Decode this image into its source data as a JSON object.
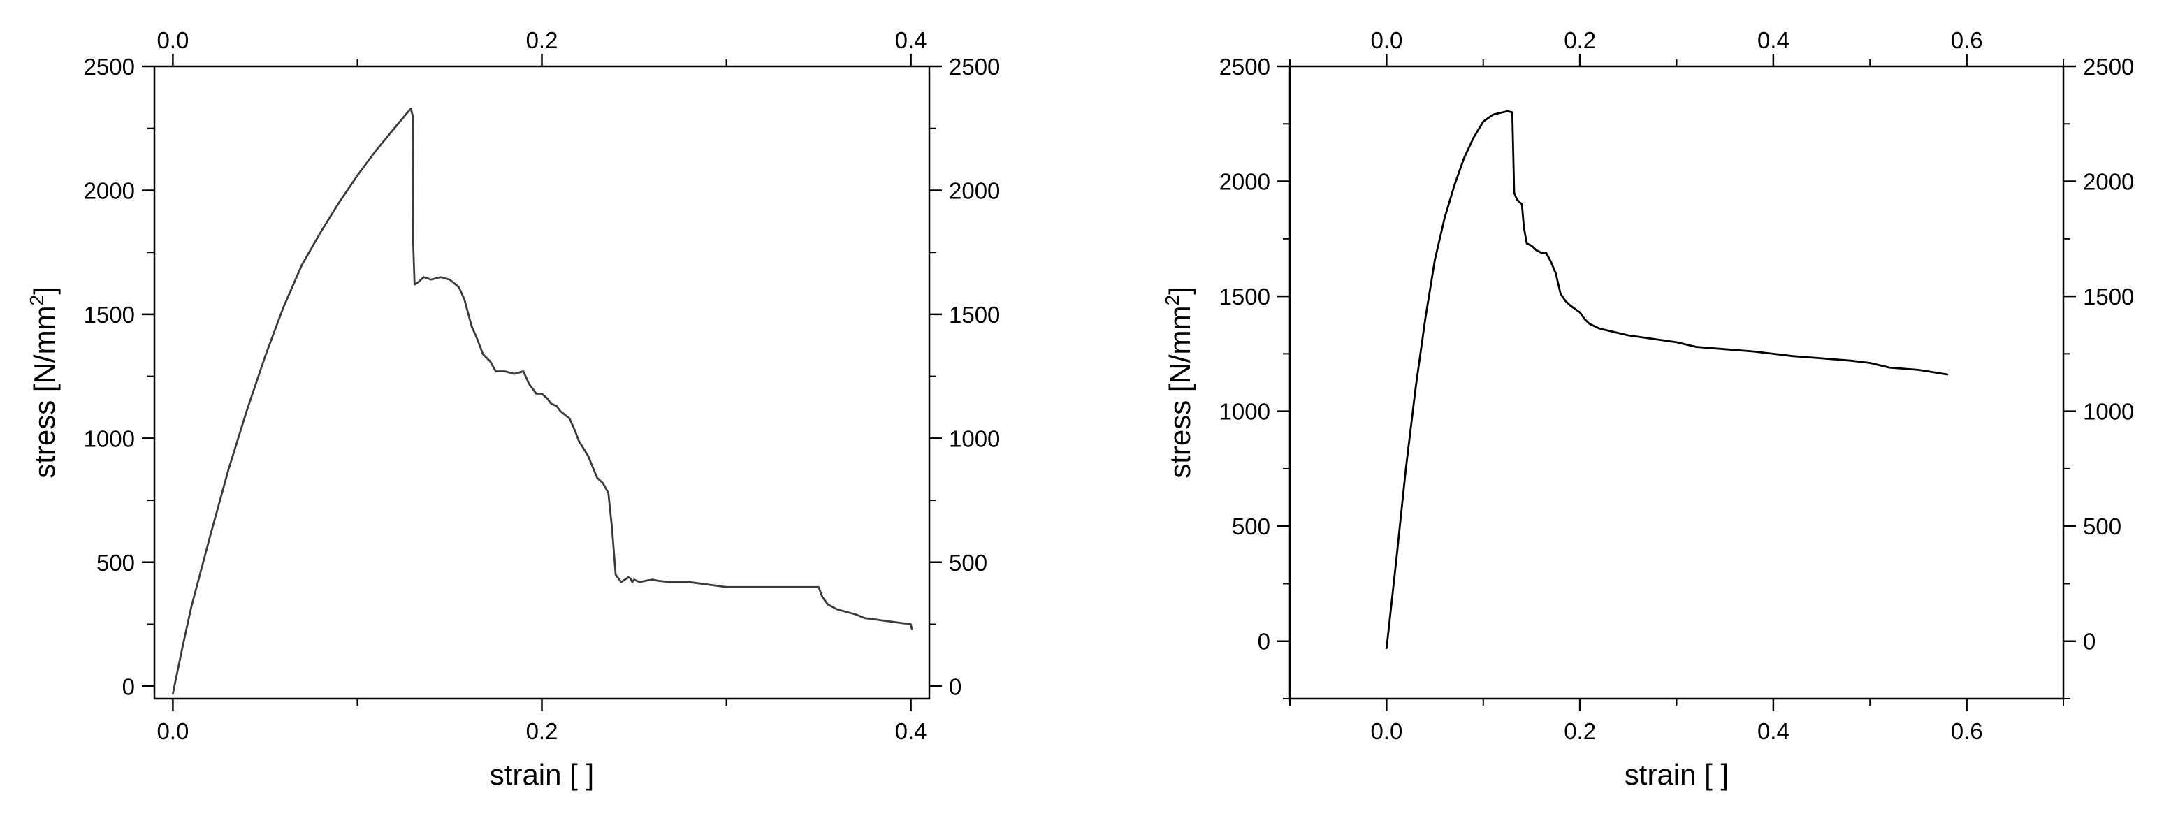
{
  "chart_data": [
    {
      "type": "line",
      "title": "",
      "xlabel": "strain [ ]",
      "ylabel_main": "stress [N/mm",
      "ylabel_sup": "2",
      "ylabel_end": "]",
      "xlim": [
        -0.01,
        0.41
      ],
      "ylim": [
        -50,
        2500
      ],
      "xticks": [
        0.0,
        0.2,
        0.4
      ],
      "xtick_labels": [
        "0.0",
        "0.2",
        "0.4"
      ],
      "xminor": [
        0.1,
        0.3
      ],
      "yticks": [
        0,
        500,
        1000,
        1500,
        2000,
        2500
      ],
      "ytick_labels": [
        "0",
        "500",
        "1000",
        "1500",
        "2000",
        "2500"
      ],
      "yminor": [
        250,
        750,
        1250,
        1750,
        2250
      ],
      "mirror_top_axis": true,
      "mirror_right_axis": true,
      "grid": false,
      "legend": "none",
      "color": "#3c3c3c",
      "series": [
        {
          "x": [
            0.0,
            0.005,
            0.01,
            0.02,
            0.03,
            0.04,
            0.05,
            0.06,
            0.07,
            0.08,
            0.09,
            0.1,
            0.11,
            0.12,
            0.129,
            0.13,
            0.1302,
            0.131,
            0.133,
            0.136,
            0.14,
            0.145,
            0.15,
            0.155,
            0.158,
            0.162,
            0.165,
            0.168,
            0.172,
            0.175,
            0.18,
            0.185,
            0.19,
            0.193,
            0.197,
            0.2,
            0.203,
            0.205,
            0.208,
            0.21,
            0.215,
            0.218,
            0.22,
            0.225,
            0.23,
            0.233,
            0.236,
            0.238,
            0.24,
            0.243,
            0.245,
            0.247,
            0.248,
            0.249,
            0.2495,
            0.25,
            0.253,
            0.256,
            0.26,
            0.263,
            0.27,
            0.28,
            0.29,
            0.3,
            0.31,
            0.32,
            0.33,
            0.34,
            0.35,
            0.352,
            0.355,
            0.36,
            0.37,
            0.375,
            0.38,
            0.385,
            0.39,
            0.395,
            0.4,
            0.4005
          ],
          "y": [
            -30,
            150,
            320,
            600,
            870,
            1110,
            1330,
            1530,
            1700,
            1830,
            1950,
            2060,
            2160,
            2250,
            2330,
            2300,
            1800,
            1620,
            1630,
            1650,
            1640,
            1650,
            1640,
            1610,
            1560,
            1450,
            1400,
            1340,
            1310,
            1270,
            1270,
            1260,
            1270,
            1220,
            1180,
            1180,
            1160,
            1140,
            1130,
            1110,
            1080,
            1030,
            990,
            930,
            840,
            820,
            780,
            640,
            450,
            420,
            430,
            440,
            435,
            420,
            425,
            430,
            420,
            425,
            430,
            425,
            420,
            420,
            410,
            400,
            400,
            400,
            400,
            400,
            400,
            360,
            330,
            310,
            290,
            275,
            270,
            265,
            260,
            255,
            250,
            230
          ]
        }
      ]
    },
    {
      "type": "line",
      "title": "",
      "xlabel": "strain [ ]",
      "ylabel_main": "stress [N/mm",
      "ylabel_sup": "2",
      "ylabel_end": "]",
      "xlim": [
        -0.1,
        0.7
      ],
      "ylim": [
        -250,
        2500
      ],
      "xticks": [
        0.0,
        0.2,
        0.4,
        0.6
      ],
      "xtick_labels": [
        "0.0",
        "0.2",
        "0.4",
        "0.6"
      ],
      "xminor": [
        -0.1,
        0.1,
        0.3,
        0.5,
        0.7
      ],
      "yticks": [
        0,
        500,
        1000,
        1500,
        2000,
        2500
      ],
      "ytick_labels": [
        "0",
        "500",
        "1000",
        "1500",
        "2000",
        "2500"
      ],
      "yminor": [
        -250,
        250,
        750,
        1250,
        1750,
        2250
      ],
      "mirror_top_axis": true,
      "mirror_right_axis": true,
      "grid": false,
      "legend": "none",
      "color": "#000000",
      "series": [
        {
          "x": [
            0.0,
            0.01,
            0.02,
            0.03,
            0.04,
            0.05,
            0.06,
            0.07,
            0.08,
            0.09,
            0.1,
            0.11,
            0.12,
            0.125,
            0.13,
            0.132,
            0.135,
            0.14,
            0.142,
            0.145,
            0.15,
            0.155,
            0.16,
            0.165,
            0.17,
            0.175,
            0.18,
            0.185,
            0.19,
            0.2,
            0.205,
            0.21,
            0.22,
            0.23,
            0.25,
            0.3,
            0.32,
            0.35,
            0.38,
            0.42,
            0.45,
            0.48,
            0.5,
            0.52,
            0.55,
            0.58
          ],
          "y": [
            -30,
            350,
            750,
            1100,
            1400,
            1660,
            1840,
            1980,
            2100,
            2190,
            2260,
            2290,
            2300,
            2305,
            2300,
            1950,
            1920,
            1900,
            1800,
            1730,
            1720,
            1700,
            1690,
            1690,
            1650,
            1600,
            1510,
            1480,
            1460,
            1430,
            1400,
            1380,
            1360,
            1350,
            1330,
            1300,
            1280,
            1270,
            1260,
            1240,
            1230,
            1220,
            1210,
            1190,
            1180,
            1160
          ]
        }
      ]
    }
  ]
}
